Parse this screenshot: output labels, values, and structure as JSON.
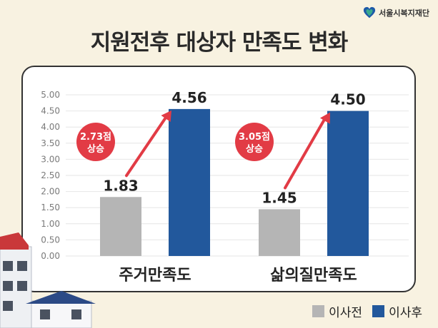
{
  "brand": {
    "name": "서울시복지재단"
  },
  "title": "지원전후 대상자 만족도 변화",
  "colors": {
    "before": "#b5b5b5",
    "after": "#22589c",
    "arrow": "#e23b45",
    "badge": "#e23b45"
  },
  "legend": {
    "before": "이사전",
    "after": "이사후"
  },
  "chart_data": {
    "type": "bar",
    "title": "지원전후 대상자 만족도 변화",
    "categories": [
      "주거만족도",
      "삶의질만족도"
    ],
    "series": [
      {
        "name": "이사전",
        "values": [
          1.83,
          1.45
        ],
        "labels": [
          "1.83",
          "1.45"
        ]
      },
      {
        "name": "이사후",
        "values": [
          4.56,
          4.5
        ],
        "labels": [
          "4.56",
          "4.50"
        ]
      }
    ],
    "ylim": [
      0,
      5
    ],
    "yticks": [
      "0.00",
      "0.50",
      "1.00",
      "1.50",
      "2.00",
      "2.50",
      "3.00",
      "3.50",
      "4.00",
      "4.50",
      "5.00"
    ],
    "grid": true,
    "legend_position": "bottom-right",
    "annotations": [
      {
        "category": "주거만족도",
        "line1": "2.73점",
        "line2": "상승"
      },
      {
        "category": "삶의질만족도",
        "line1": "3.05점",
        "line2": "상승"
      }
    ]
  }
}
